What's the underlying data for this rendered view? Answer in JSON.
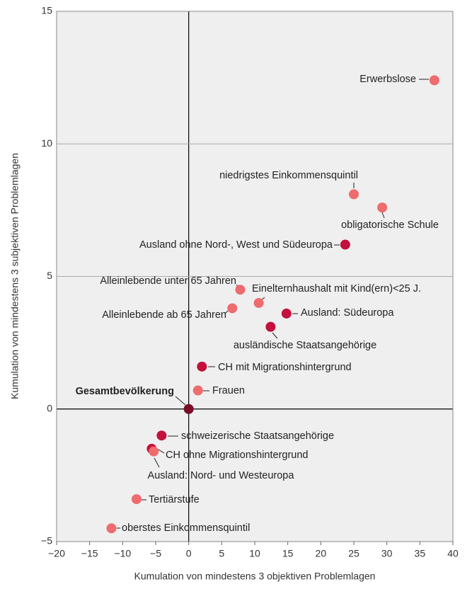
{
  "chart_data": {
    "type": "scatter",
    "xlabel": "Kumulation von mindestens 3 objektiven Problemlagen",
    "ylabel": "Kumulation von mindestens 3 subjektiven Problemlagen",
    "xlim": [
      -20,
      40
    ],
    "ylim": [
      -5,
      15
    ],
    "xticks": [
      {
        "value": -20,
        "label": "−20"
      },
      {
        "value": -15,
        "label": "−15"
      },
      {
        "value": -10,
        "label": "−10"
      },
      {
        "value": -5,
        "label": "−5"
      },
      0,
      5,
      10,
      15,
      20,
      25,
      30,
      35,
      40
    ],
    "yticks": [
      {
        "value": -5,
        "label": "−5"
      },
      0,
      5,
      10,
      15
    ],
    "grid": true,
    "points": [
      {
        "label": "Erwerbslose",
        "x": 37.2,
        "y": 12.4,
        "color": "#ee6b6e"
      },
      {
        "label": "niedrigstes Einkommensquintil",
        "x": 25.0,
        "y": 8.1,
        "color": "#ee6b6e"
      },
      {
        "label": "obligatorische Schule",
        "x": 29.3,
        "y": 7.6,
        "color": "#ee6b6e"
      },
      {
        "label": "Ausland ohne Nord-, West und Südeuropa",
        "x": 23.7,
        "y": 6.2,
        "color": "#c3103c"
      },
      {
        "label": "Alleinlebende unter 65 Jahren",
        "x": 7.8,
        "y": 4.5,
        "color": "#ee6b6e"
      },
      {
        "label": "Einelternhaushalt mit Kind(ern)<25 J.",
        "x": 10.6,
        "y": 4.0,
        "color": "#ee6b6e"
      },
      {
        "label": "Alleinlebende ab 65 Jahren",
        "x": 6.6,
        "y": 3.8,
        "color": "#ee6b6e"
      },
      {
        "label": "Ausland: Südeuropa",
        "x": 14.8,
        "y": 3.6,
        "color": "#c3103c"
      },
      {
        "label": "ausländische Staatsangehörige",
        "x": 12.4,
        "y": 3.1,
        "color": "#c3103c"
      },
      {
        "label": "CH mit Migrationshintergrund",
        "x": 2.0,
        "y": 1.6,
        "color": "#c3103c"
      },
      {
        "label": "Frauen",
        "x": 1.4,
        "y": 0.7,
        "color": "#ee6b6e"
      },
      {
        "label": "Gesamtbevölkerung",
        "x": 0,
        "y": 0,
        "color": "#7a0c28"
      },
      {
        "label": "schweizerische Staatsangehörige",
        "x": -4.1,
        "y": -1.0,
        "color": "#c3103c"
      },
      {
        "label": "CH ohne Migrationshintergrund",
        "x": -5.6,
        "y": -1.5,
        "color": "#c3103c"
      },
      {
        "label": "Ausland: Nord- und Westeuropa",
        "x": -5.3,
        "y": -1.6,
        "color": "#ee6b6e"
      },
      {
        "label": "Tertiärstufe",
        "x": -7.9,
        "y": -3.4,
        "color": "#ee6b6e"
      },
      {
        "label": "oberstes Einkommensquintil",
        "x": -11.7,
        "y": -4.5,
        "color": "#ee6b6e"
      }
    ]
  }
}
